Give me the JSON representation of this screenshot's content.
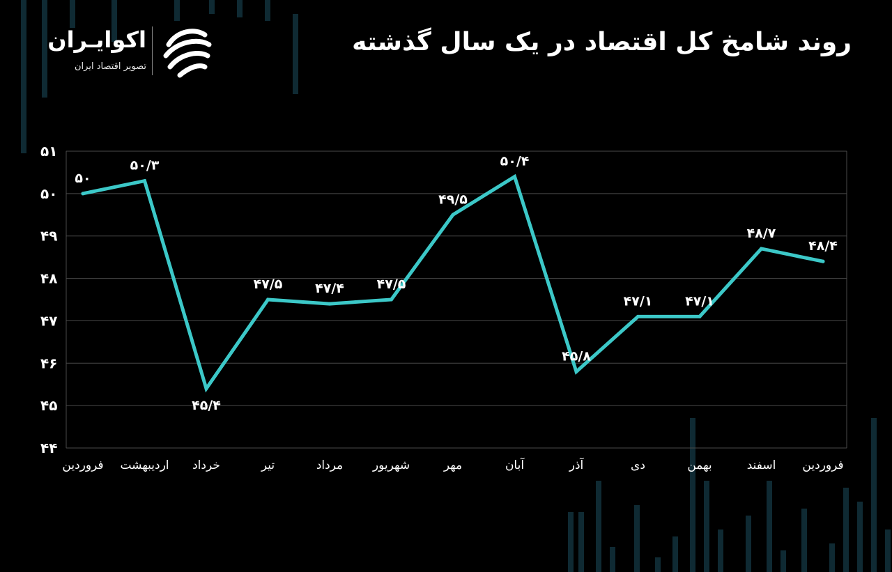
{
  "header": {
    "title": "روند شامخ کل اقتصاد در یک سال گذشته"
  },
  "brand": {
    "name": "اکوایـران",
    "tagline": "تصویر اقتصاد ایران",
    "logo_icon": "ecoiran-swirl-logo"
  },
  "colors": {
    "background": "#000000",
    "line": "#3cc8c8",
    "grid": "#4a4a4a",
    "text": "#ffffff",
    "decor": "#0f2a33"
  },
  "chart_data": {
    "type": "line",
    "title": "روند شامخ کل اقتصاد در یک سال گذشته",
    "xlabel": "",
    "ylabel": "",
    "ylim": [
      44,
      51
    ],
    "yticks": [
      44,
      45,
      46,
      47,
      48,
      49,
      50,
      51
    ],
    "ytick_labels": [
      "۴۴",
      "۴۵",
      "۴۶",
      "۴۷",
      "۴۸",
      "۴۹",
      "۵۰",
      "۵۱"
    ],
    "grid": true,
    "legend": "none",
    "categories": [
      "فروردین",
      "اردیبهشت",
      "خرداد",
      "تیر",
      "مرداد",
      "شهریور",
      "مهر",
      "آبان",
      "آذر",
      "دی",
      "بهمن",
      "اسفند",
      "فروردین"
    ],
    "series": [
      {
        "values": [
          50.0,
          50.3,
          45.4,
          47.5,
          47.4,
          47.5,
          49.5,
          50.4,
          45.8,
          47.1,
          47.1,
          48.7,
          48.4
        ],
        "labels": [
          "۵۰",
          "۵۰/۳",
          "۴۵/۴",
          "۴۷/۵",
          "۴۷/۴",
          "۴۷/۵",
          "۴۹/۵",
          "۵۰/۴",
          "۴۵/۸",
          "۴۷/۱",
          "۴۷/۱",
          "۴۸/۷",
          "۴۸/۴"
        ]
      }
    ]
  }
}
